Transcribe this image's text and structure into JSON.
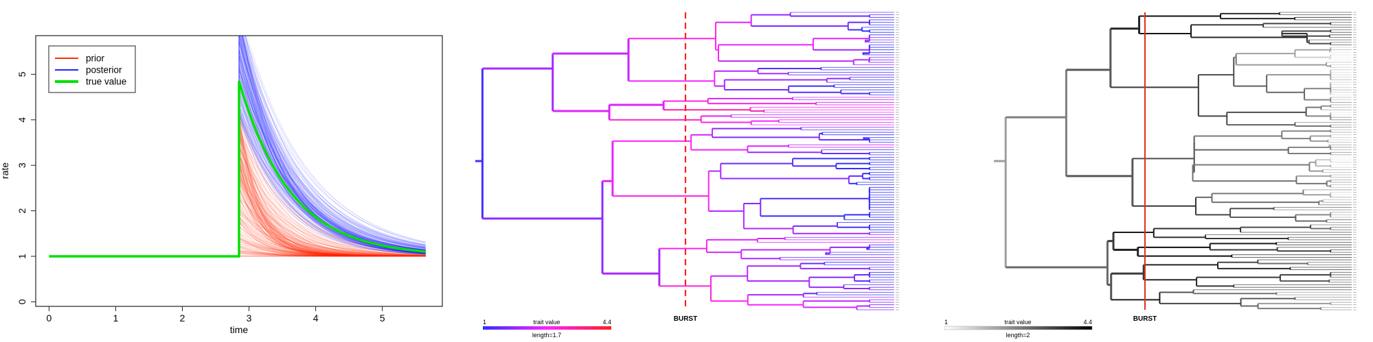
{
  "chart_data": [
    {
      "type": "line",
      "xlabel": "time",
      "ylabel": "rate",
      "xlim": [
        -0.2,
        5.9
      ],
      "ylim": [
        -0.1,
        5.85
      ],
      "x_ticks": [
        "0",
        "1",
        "2",
        "3",
        "4",
        "5"
      ],
      "y_ticks": [
        "0",
        "1",
        "2",
        "3",
        "4",
        "5"
      ],
      "legend_position": "top-left",
      "burst_time": 2.85,
      "end_time": 5.65,
      "series": [
        {
          "name": "prior",
          "color": "#ff2a00",
          "peak_range": [
            1.0,
            4.2
          ],
          "decay_range": [
            1.2,
            3.5
          ]
        },
        {
          "name": "posterior",
          "color": "#2222ff",
          "peak_range": [
            4.0,
            6.5
          ],
          "decay_range": [
            1.0,
            1.6
          ]
        },
        {
          "name": "true value",
          "color": "#00e000",
          "points": {
            "x": [
              0,
              2.85,
              2.85,
              5.65
            ],
            "y": [
              1,
              1,
              4.85,
              1.05
            ]
          },
          "decay_rate": 1.3
        }
      ]
    },
    {
      "type": "tree",
      "colorbar": {
        "min_label": "1",
        "max_label": "4.4",
        "title": "trait value",
        "length_label": "length=1.7",
        "colors": [
          "#3030ff",
          "#ff22ff",
          "#ff2020"
        ]
      },
      "burst_label": "BURST",
      "burst_line_color": "#ff2020",
      "burst_line_style": "dashed"
    },
    {
      "type": "tree",
      "colorbar": {
        "min_label": "1",
        "max_label": "4.4",
        "title": "trait value",
        "length_label": "length=2",
        "colors": [
          "#ffffff",
          "#000000"
        ]
      },
      "burst_label": "BURST",
      "burst_line_color": "#e03020",
      "burst_line_style": "solid"
    }
  ]
}
